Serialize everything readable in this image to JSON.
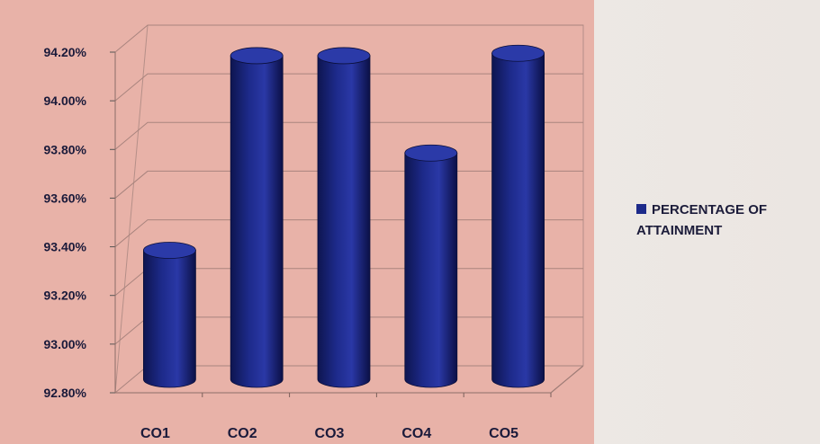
{
  "chart_data": {
    "type": "bar",
    "style": "3d-cylinder",
    "categories": [
      "CO1",
      "CO2",
      "CO3",
      "CO4",
      "CO5"
    ],
    "series": [
      {
        "name": "PERCENTAGE OF ATTAINMENT",
        "values": [
          93.33,
          94.13,
          94.13,
          93.73,
          94.14
        ],
        "color": "#1d2a8a"
      }
    ],
    "y_ticks": [
      "92.80%",
      "93.00%",
      "93.20%",
      "93.40%",
      "93.60%",
      "93.80%",
      "94.00%",
      "94.20%"
    ],
    "ylim": [
      92.8,
      94.2
    ],
    "y_unit": "%",
    "grid": true,
    "legend_position": "right",
    "plot_background": "#e8b2a8",
    "title": "",
    "xlabel": "",
    "ylabel": ""
  }
}
